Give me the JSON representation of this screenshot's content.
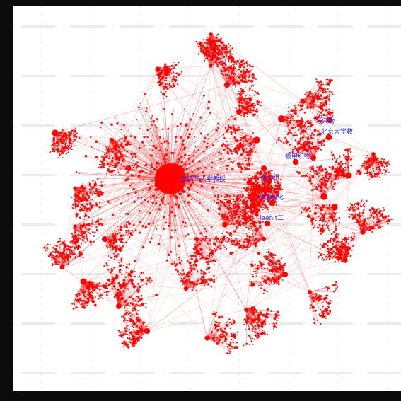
{
  "colors": {
    "background": "#0b0b0b",
    "panel": "#ffffff",
    "edge": "#ff2a2a",
    "node": "#ff0000",
    "label": "#2a2ae8"
  },
  "labels": [
    {
      "id": "n1",
      "text": "污染物"
    },
    {
      "id": "n2",
      "text": "北京大学教"
    },
    {
      "id": "n3",
      "text": "被甲织物"
    },
    {
      "id": "n4",
      "text": "加清华大学教授"
    },
    {
      "id": "n5",
      "text": "南山组"
    },
    {
      "id": "n6",
      "text": "林诺强化"
    },
    {
      "id": "n7",
      "text": "laenit二"
    }
  ],
  "icons": {
    "grid": "dotted-grid",
    "watermark": "watermark-text"
  }
}
